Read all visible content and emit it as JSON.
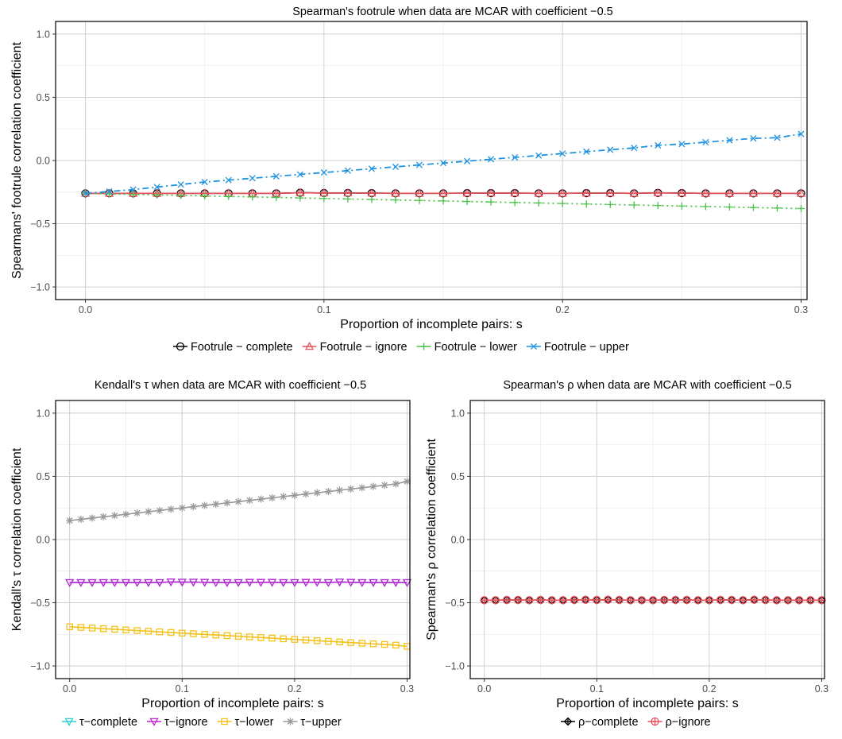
{
  "chart_data": [
    {
      "type": "line",
      "title": "Spearman's footrule when data are MCAR with coefficient −0.5",
      "xlabel": "Proportion of incomplete pairs: s",
      "ylabel": "Spearmans' footrule correlation coefficient",
      "xlim": [
        -0.0125,
        0.3025
      ],
      "ylim": [
        -1.1,
        1.1
      ],
      "xticks": [
        0,
        0.1,
        0.2,
        0.3
      ],
      "xtick_labels": [
        "0.0",
        "0.1",
        "0.2",
        "0.3"
      ],
      "yticks": [
        -1,
        -0.5,
        0,
        0.5,
        1
      ],
      "ytick_labels": [
        "−1.0",
        "−0.5",
        "0.0",
        "0.5",
        "1.0"
      ],
      "grid": true,
      "legend_position": "bottom",
      "x": [
        0,
        0.01,
        0.02,
        0.03,
        0.04,
        0.05,
        0.06,
        0.07,
        0.08,
        0.09,
        0.1,
        0.11,
        0.12,
        0.13,
        0.14,
        0.15,
        0.16,
        0.17,
        0.18,
        0.19,
        0.2,
        0.21,
        0.22,
        0.23,
        0.24,
        0.25,
        0.26,
        0.27,
        0.28,
        0.29,
        0.3
      ],
      "series": [
        {
          "name": "Footrule − complete",
          "color": "#000000",
          "marker": "circle",
          "dash": "solid",
          "values": [
            -0.26,
            -0.26,
            -0.26,
            -0.26,
            -0.26,
            -0.26,
            -0.26,
            -0.26,
            -0.26,
            -0.255,
            -0.257,
            -0.257,
            -0.258,
            -0.26,
            -0.26,
            -0.26,
            -0.258,
            -0.258,
            -0.258,
            -0.26,
            -0.26,
            -0.258,
            -0.258,
            -0.26,
            -0.256,
            -0.258,
            -0.26,
            -0.26,
            -0.26,
            -0.26,
            -0.26
          ]
        },
        {
          "name": "Footrule − ignore",
          "color": "#e8505b",
          "marker": "triangle-up",
          "dash": "solid",
          "values": [
            -0.26,
            -0.26,
            -0.26,
            -0.26,
            -0.26,
            -0.26,
            -0.26,
            -0.26,
            -0.26,
            -0.255,
            -0.257,
            -0.257,
            -0.258,
            -0.26,
            -0.26,
            -0.26,
            -0.258,
            -0.258,
            -0.258,
            -0.26,
            -0.26,
            -0.258,
            -0.258,
            -0.26,
            -0.256,
            -0.258,
            -0.26,
            -0.26,
            -0.26,
            -0.26,
            -0.26
          ]
        },
        {
          "name": "Footrule − lower",
          "color": "#4cc24a",
          "marker": "plus",
          "dash": "dotted",
          "values": [
            -0.26,
            -0.264,
            -0.268,
            -0.272,
            -0.276,
            -0.28,
            -0.284,
            -0.288,
            -0.292,
            -0.296,
            -0.3,
            -0.304,
            -0.308,
            -0.312,
            -0.316,
            -0.32,
            -0.324,
            -0.328,
            -0.332,
            -0.336,
            -0.34,
            -0.344,
            -0.348,
            -0.352,
            -0.356,
            -0.36,
            -0.364,
            -0.368,
            -0.372,
            -0.376,
            -0.38
          ]
        },
        {
          "name": "Footrule − upper",
          "color": "#1f93e0",
          "marker": "cross",
          "dash": "dotdash",
          "values": [
            -0.26,
            -0.245,
            -0.23,
            -0.21,
            -0.19,
            -0.17,
            -0.155,
            -0.14,
            -0.125,
            -0.11,
            -0.095,
            -0.08,
            -0.065,
            -0.05,
            -0.035,
            -0.02,
            -0.005,
            0.01,
            0.025,
            0.04,
            0.055,
            0.07,
            0.085,
            0.1,
            0.12,
            0.13,
            0.145,
            0.16,
            0.175,
            0.18,
            0.21
          ]
        }
      ]
    },
    {
      "type": "line",
      "title": "Kendall's  τ  when data are  MCAR  with coefficient  −0.5",
      "xlabel": "Proportion of incomplete pairs: s",
      "ylabel": "Kendall's  τ correlation coefficient",
      "xlim": [
        -0.0125,
        0.3025
      ],
      "ylim": [
        -1.1,
        1.1
      ],
      "xticks": [
        0,
        0.1,
        0.2,
        0.3
      ],
      "xtick_labels": [
        "0.0",
        "0.1",
        "0.2",
        "0.3"
      ],
      "yticks": [
        -1,
        -0.5,
        0,
        0.5,
        1
      ],
      "ytick_labels": [
        "−1.0",
        "−0.5",
        "0.0",
        "0.5",
        "1.0"
      ],
      "grid": true,
      "legend_position": "bottom",
      "x": [
        0,
        0.01,
        0.02,
        0.03,
        0.04,
        0.05,
        0.06,
        0.07,
        0.08,
        0.09,
        0.1,
        0.11,
        0.12,
        0.13,
        0.14,
        0.15,
        0.16,
        0.17,
        0.18,
        0.19,
        0.2,
        0.21,
        0.22,
        0.23,
        0.24,
        0.25,
        0.26,
        0.27,
        0.28,
        0.29,
        0.3
      ],
      "series": [
        {
          "name": "τ−complete",
          "color": "#2ccfd6",
          "marker": "triangle-down",
          "dash": "solid",
          "values": [
            -0.34,
            -0.34,
            -0.34,
            -0.34,
            -0.34,
            -0.34,
            -0.34,
            -0.34,
            -0.34,
            -0.335,
            -0.337,
            -0.337,
            -0.338,
            -0.34,
            -0.34,
            -0.34,
            -0.338,
            -0.338,
            -0.338,
            -0.34,
            -0.34,
            -0.338,
            -0.338,
            -0.34,
            -0.336,
            -0.338,
            -0.34,
            -0.34,
            -0.34,
            -0.34,
            -0.34
          ]
        },
        {
          "name": "τ−ignore",
          "color": "#c026d3",
          "marker": "triangle-down",
          "dash": "solid",
          "values": [
            -0.34,
            -0.34,
            -0.34,
            -0.34,
            -0.34,
            -0.34,
            -0.34,
            -0.34,
            -0.34,
            -0.335,
            -0.337,
            -0.337,
            -0.338,
            -0.34,
            -0.34,
            -0.34,
            -0.338,
            -0.338,
            -0.338,
            -0.34,
            -0.34,
            -0.338,
            -0.338,
            -0.34,
            -0.336,
            -0.338,
            -0.34,
            -0.34,
            -0.34,
            -0.34,
            -0.34
          ]
        },
        {
          "name": "τ−lower",
          "color": "#f2c21b",
          "marker": "square",
          "dash": "solid",
          "values": [
            -0.69,
            -0.695,
            -0.7,
            -0.705,
            -0.71,
            -0.715,
            -0.72,
            -0.725,
            -0.73,
            -0.735,
            -0.74,
            -0.745,
            -0.75,
            -0.755,
            -0.76,
            -0.765,
            -0.77,
            -0.775,
            -0.78,
            -0.785,
            -0.79,
            -0.795,
            -0.8,
            -0.805,
            -0.81,
            -0.815,
            -0.82,
            -0.825,
            -0.83,
            -0.835,
            -0.845
          ]
        },
        {
          "name": "τ−upper",
          "color": "#999999",
          "marker": "asterisk",
          "dash": "solid",
          "values": [
            0.15,
            0.16,
            0.17,
            0.18,
            0.19,
            0.2,
            0.21,
            0.22,
            0.23,
            0.24,
            0.25,
            0.26,
            0.27,
            0.28,
            0.29,
            0.3,
            0.31,
            0.32,
            0.33,
            0.34,
            0.35,
            0.36,
            0.37,
            0.38,
            0.39,
            0.4,
            0.41,
            0.42,
            0.43,
            0.44,
            0.46
          ]
        }
      ]
    },
    {
      "type": "line",
      "title": "Spearman's  ρ  when data are  MCAR  with coefficient  −0.5",
      "xlabel": "Proportion of incomplete pairs: s",
      "ylabel": "Spearman's  ρ correlation coefficient",
      "xlim": [
        -0.0125,
        0.3025
      ],
      "ylim": [
        -1.1,
        1.1
      ],
      "xticks": [
        0,
        0.1,
        0.2,
        0.3
      ],
      "xtick_labels": [
        "0.0",
        "0.1",
        "0.2",
        "0.3"
      ],
      "yticks": [
        -1,
        -0.5,
        0,
        0.5,
        1
      ],
      "ytick_labels": [
        "−1.0",
        "−0.5",
        "0.0",
        "0.5",
        "1.0"
      ],
      "grid": true,
      "legend_position": "bottom",
      "x": [
        0,
        0.01,
        0.02,
        0.03,
        0.04,
        0.05,
        0.06,
        0.07,
        0.08,
        0.09,
        0.1,
        0.11,
        0.12,
        0.13,
        0.14,
        0.15,
        0.16,
        0.17,
        0.18,
        0.19,
        0.2,
        0.21,
        0.22,
        0.23,
        0.24,
        0.25,
        0.26,
        0.27,
        0.28,
        0.29,
        0.3
      ],
      "series": [
        {
          "name": "ρ−complete",
          "color": "#000000",
          "marker": "diamond-plus",
          "dash": "solid",
          "values": [
            -0.48,
            -0.48,
            -0.478,
            -0.478,
            -0.48,
            -0.478,
            -0.48,
            -0.48,
            -0.478,
            -0.476,
            -0.478,
            -0.476,
            -0.478,
            -0.48,
            -0.48,
            -0.48,
            -0.478,
            -0.478,
            -0.478,
            -0.48,
            -0.48,
            -0.478,
            -0.478,
            -0.48,
            -0.476,
            -0.478,
            -0.48,
            -0.48,
            -0.48,
            -0.48,
            -0.48
          ]
        },
        {
          "name": "ρ−ignore",
          "color": "#e8505b",
          "marker": "circle-plus",
          "dash": "solid",
          "values": [
            -0.48,
            -0.48,
            -0.478,
            -0.478,
            -0.48,
            -0.478,
            -0.48,
            -0.48,
            -0.478,
            -0.476,
            -0.478,
            -0.476,
            -0.478,
            -0.48,
            -0.48,
            -0.48,
            -0.478,
            -0.478,
            -0.478,
            -0.48,
            -0.48,
            -0.478,
            -0.478,
            -0.48,
            -0.476,
            -0.478,
            -0.48,
            -0.48,
            -0.48,
            -0.48,
            -0.48
          ]
        }
      ]
    }
  ]
}
